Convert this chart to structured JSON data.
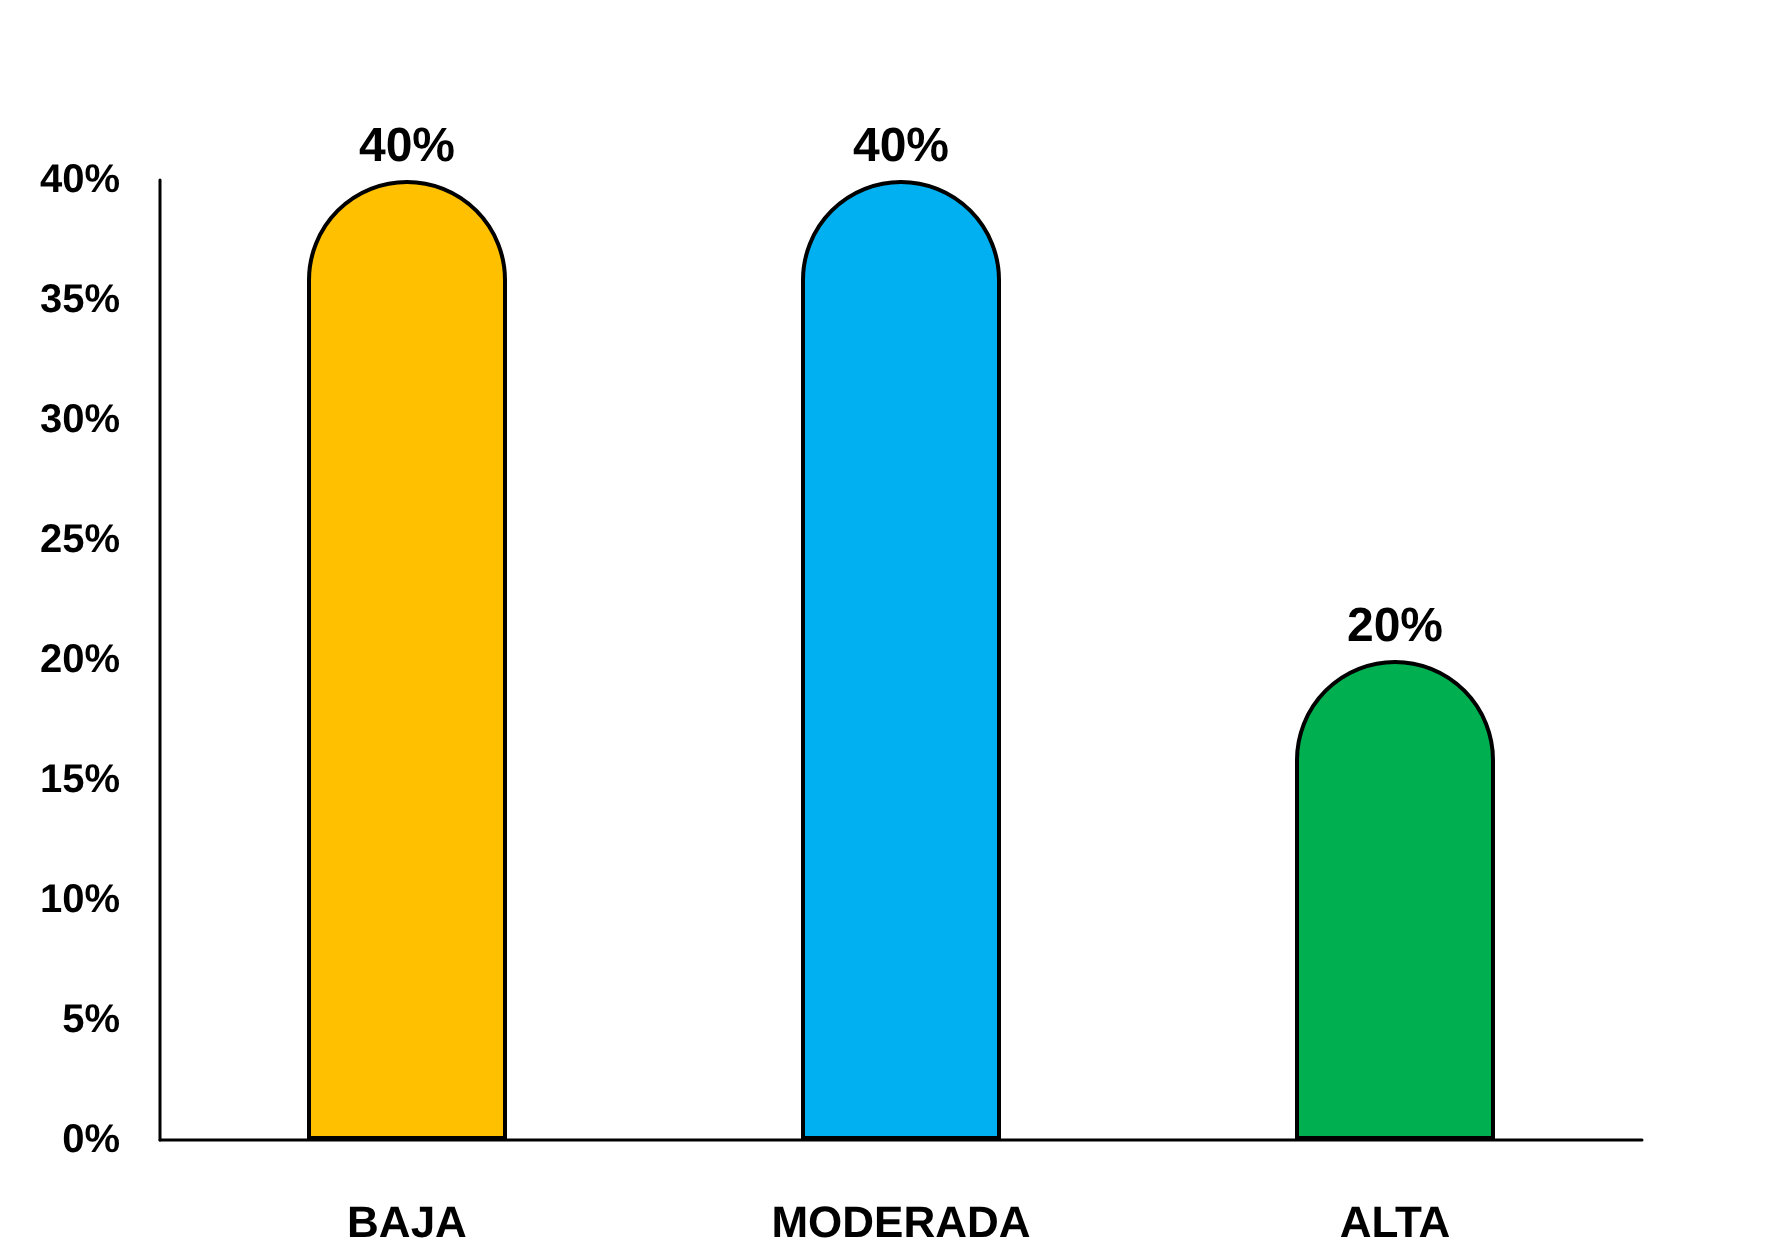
{
  "chart_data": {
    "type": "bar",
    "categories": [
      "BAJA",
      "MODERADA",
      "ALTA"
    ],
    "values": [
      40,
      40,
      20
    ],
    "colors": [
      "#ffc000",
      "#00b0f0",
      "#00b050"
    ],
    "value_labels": [
      "40%",
      "40%",
      "20%"
    ],
    "ylim": [
      0,
      40
    ],
    "yticks": [
      {
        "value": 0,
        "label": "0%"
      },
      {
        "value": 5,
        "label": "5%"
      },
      {
        "value": 10,
        "label": "10%"
      },
      {
        "value": 15,
        "label": "15%"
      },
      {
        "value": 20,
        "label": "20%"
      },
      {
        "value": 25,
        "label": "25%"
      },
      {
        "value": 30,
        "label": "30%"
      },
      {
        "value": 35,
        "label": "35%"
      },
      {
        "value": 40,
        "label": "40%"
      }
    ],
    "grid": false
  }
}
